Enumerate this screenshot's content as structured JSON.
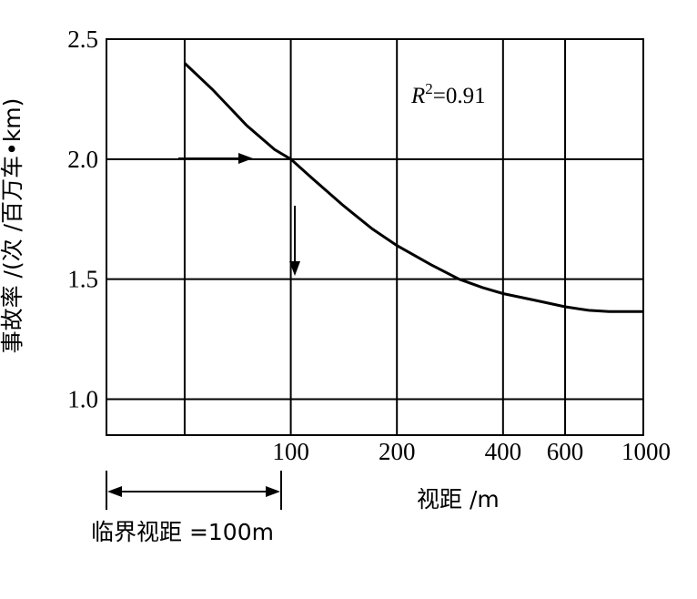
{
  "chart_data": {
    "type": "line",
    "title": "",
    "xlabel": "视距 /m",
    "ylabel": "事故率 /(次 /百万车•km)",
    "x_scale": "log",
    "x_ticks": [
      100,
      200,
      400,
      600,
      1000
    ],
    "x_tick_labels": [
      "100",
      "200",
      "400",
      "600",
      "1000"
    ],
    "y_ticks": [
      1.0,
      1.5,
      2.0,
      2.5
    ],
    "y_tick_labels": [
      "1.0",
      "1.5",
      "2.0",
      "2.5"
    ],
    "ylim": [
      0.85,
      2.5
    ],
    "xlim": [
      30,
      1000
    ],
    "grid": true,
    "annotation": {
      "r2_prefix": "R",
      "r2_sup": "2",
      "r2_value": "=0.91"
    },
    "critical_label": "临界视距 =100m",
    "series": [
      {
        "x": [
          50,
          60,
          75,
          90,
          100,
          115,
          140,
          170,
          200,
          250,
          300,
          350,
          400,
          500,
          600,
          700,
          800,
          1000
        ],
        "values": [
          2.4,
          2.29,
          2.14,
          2.04,
          2.0,
          1.92,
          1.81,
          1.71,
          1.64,
          1.56,
          1.5,
          1.465,
          1.44,
          1.41,
          1.385,
          1.37,
          1.365,
          1.365
        ]
      }
    ]
  }
}
